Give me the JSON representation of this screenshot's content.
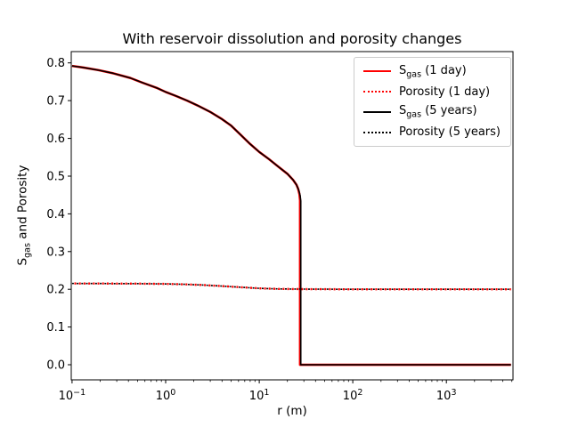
{
  "figure": {
    "title": "With reservoir dissolution and porosity changes",
    "x_label": "r (m)",
    "y_label": {
      "prefix": "S",
      "sub": "gas",
      "rest": " and Porosity"
    }
  },
  "chart_data": {
    "type": "line",
    "title": "With reservoir dissolution and porosity changes",
    "xlabel": "r (m)",
    "ylabel": "S_gas and Porosity",
    "x_scale": "log",
    "y_scale": "linear",
    "grid": false,
    "xlim": [
      0.098,
      5150
    ],
    "ylim": [
      -0.04,
      0.83
    ],
    "x_ticks": [
      {
        "value": 0.1,
        "base": "10",
        "exp": "−1"
      },
      {
        "value": 1,
        "base": "10",
        "exp": "0"
      },
      {
        "value": 10,
        "base": "10",
        "exp": "1"
      },
      {
        "value": 100,
        "base": "10",
        "exp": "2"
      },
      {
        "value": 1000,
        "base": "10",
        "exp": "3"
      }
    ],
    "y_ticks": [
      {
        "value": 0.0,
        "label": "0.0"
      },
      {
        "value": 0.1,
        "label": "0.1"
      },
      {
        "value": 0.2,
        "label": "0.2"
      },
      {
        "value": 0.3,
        "label": "0.3"
      },
      {
        "value": 0.4,
        "label": "0.4"
      },
      {
        "value": 0.5,
        "label": "0.5"
      },
      {
        "value": 0.6,
        "label": "0.6"
      },
      {
        "value": 0.7,
        "label": "0.7"
      },
      {
        "value": 0.8,
        "label": "0.8"
      }
    ],
    "legend": {
      "position": "upper right",
      "entries": [
        {
          "label_prefix": "S",
          "label_sub": "gas",
          "label_rest": " (1 day)",
          "color": "#ff0000",
          "style": "solid"
        },
        {
          "label": "Porosity (1 day)",
          "color": "#ff0000",
          "style": "dotted"
        },
        {
          "label_prefix": "S",
          "label_sub": "gas",
          "label_rest": " (5 years)",
          "color": "#000000",
          "style": "solid"
        },
        {
          "label": "Porosity (5 years)",
          "color": "#000000",
          "style": "dotted"
        }
      ]
    },
    "series": [
      {
        "name": "Sgas_1day",
        "color": "#ff0000",
        "style": "solid",
        "points": [
          [
            0.1,
            0.792
          ],
          [
            0.13,
            0.788
          ],
          [
            0.19,
            0.781
          ],
          [
            0.28,
            0.772
          ],
          [
            0.42,
            0.76
          ],
          [
            0.56,
            0.748
          ],
          [
            0.8,
            0.734
          ],
          [
            1.0,
            0.723
          ],
          [
            1.3,
            0.712
          ],
          [
            1.7,
            0.7
          ],
          [
            2.2,
            0.687
          ],
          [
            3.0,
            0.67
          ],
          [
            4.0,
            0.651
          ],
          [
            5.0,
            0.634
          ],
          [
            6.3,
            0.61
          ],
          [
            8.0,
            0.585
          ],
          [
            10.0,
            0.564
          ],
          [
            12.7,
            0.545
          ],
          [
            16.0,
            0.525
          ],
          [
            20.0,
            0.506
          ],
          [
            23.0,
            0.49
          ],
          [
            25.0,
            0.477
          ],
          [
            26.0,
            0.467
          ],
          [
            26.9,
            0.452
          ],
          [
            27.3,
            0.436
          ],
          [
            27.3,
            0.0
          ],
          [
            4900,
            0.0
          ]
        ]
      },
      {
        "name": "Porosity_1day",
        "color": "#ff0000",
        "style": "dotted",
        "points": [
          [
            0.1,
            0.2155
          ],
          [
            0.5,
            0.215
          ],
          [
            1.0,
            0.2143
          ],
          [
            1.6,
            0.2132
          ],
          [
            2.5,
            0.2113
          ],
          [
            4.0,
            0.2085
          ],
          [
            6.3,
            0.2055
          ],
          [
            10.0,
            0.2025
          ],
          [
            16.0,
            0.201
          ],
          [
            28.0,
            0.2005
          ],
          [
            100.0,
            0.2
          ],
          [
            4900,
            0.2
          ]
        ]
      },
      {
        "name": "Sgas_5years",
        "color": "#000000",
        "style": "solid",
        "points": [
          [
            0.1,
            0.792
          ],
          [
            0.13,
            0.788
          ],
          [
            0.19,
            0.781
          ],
          [
            0.28,
            0.772
          ],
          [
            0.42,
            0.76
          ],
          [
            0.56,
            0.748
          ],
          [
            0.8,
            0.734
          ],
          [
            1.0,
            0.723
          ],
          [
            1.3,
            0.712
          ],
          [
            1.7,
            0.7
          ],
          [
            2.2,
            0.687
          ],
          [
            3.0,
            0.67
          ],
          [
            4.0,
            0.651
          ],
          [
            5.0,
            0.634
          ],
          [
            6.3,
            0.61
          ],
          [
            8.0,
            0.585
          ],
          [
            10.0,
            0.564
          ],
          [
            12.7,
            0.545
          ],
          [
            16.0,
            0.525
          ],
          [
            20.0,
            0.506
          ],
          [
            23.0,
            0.49
          ],
          [
            25.0,
            0.477
          ],
          [
            26.5,
            0.462
          ],
          [
            27.4,
            0.448
          ],
          [
            27.8,
            0.434
          ],
          [
            27.8,
            0.0
          ],
          [
            4900,
            0.0
          ]
        ]
      },
      {
        "name": "Porosity_5years",
        "color": "#000000",
        "style": "dotted",
        "points": [
          [
            0.1,
            0.2155
          ],
          [
            0.5,
            0.215
          ],
          [
            1.0,
            0.2143
          ],
          [
            1.6,
            0.2132
          ],
          [
            2.5,
            0.2113
          ],
          [
            4.0,
            0.2085
          ],
          [
            6.3,
            0.2055
          ],
          [
            10.0,
            0.2025
          ],
          [
            16.0,
            0.201
          ],
          [
            28.0,
            0.2005
          ],
          [
            100.0,
            0.2
          ],
          [
            4900,
            0.2
          ]
        ]
      }
    ]
  }
}
